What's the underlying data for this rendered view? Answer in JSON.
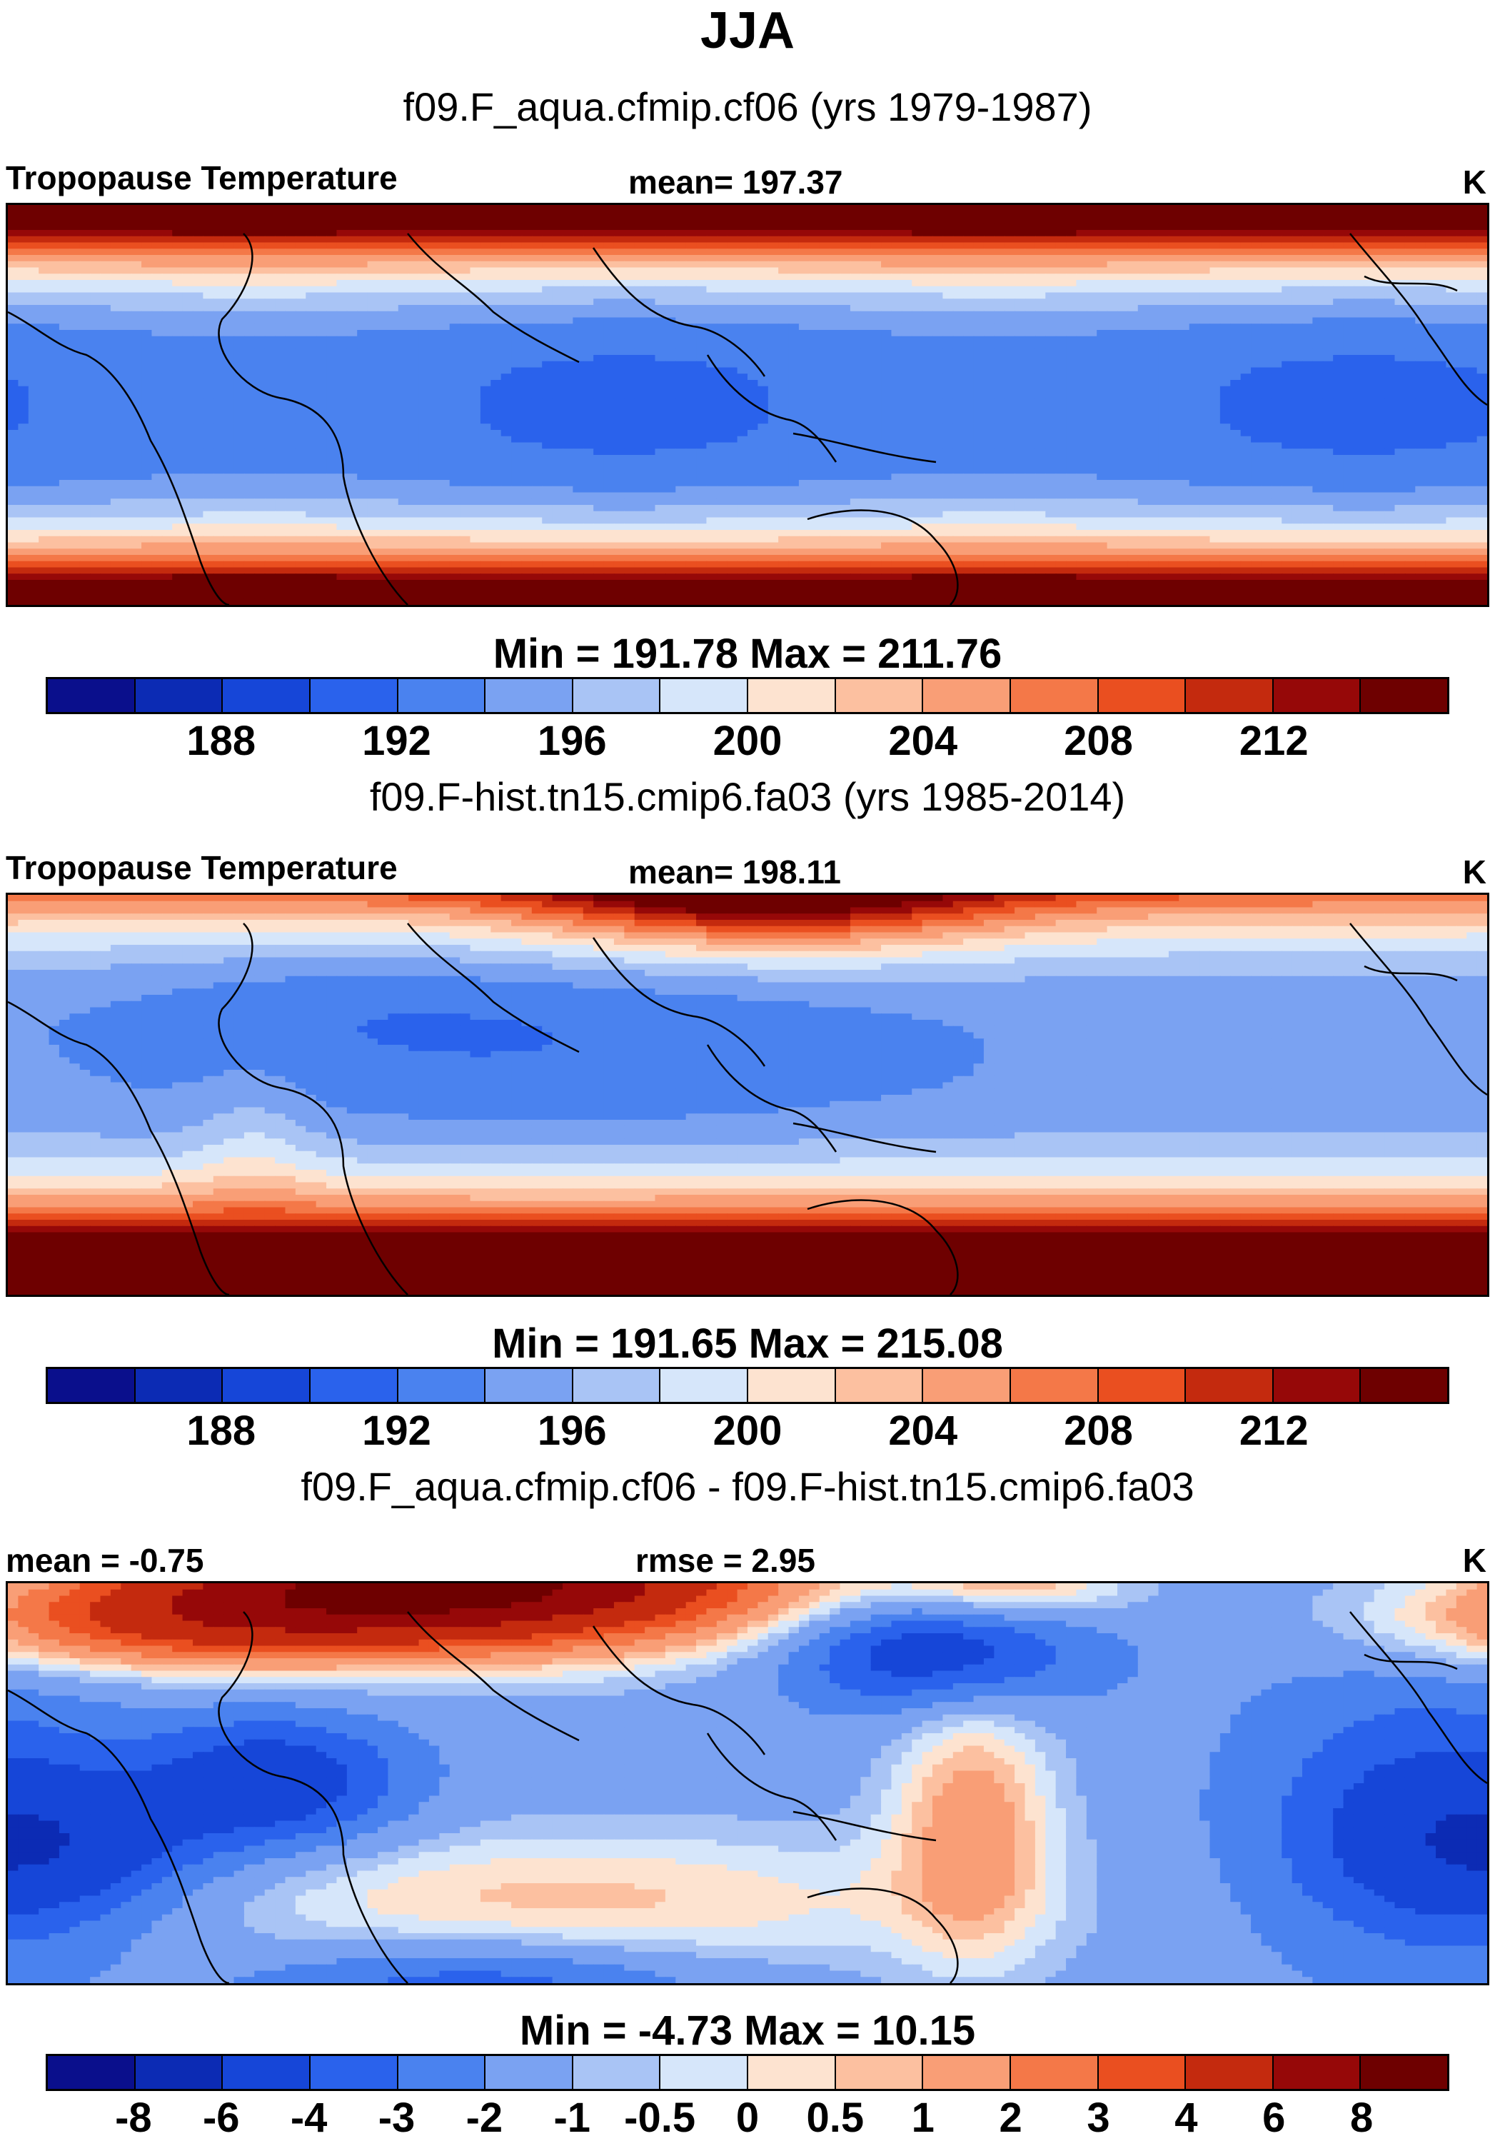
{
  "chart_data": [
    {
      "type": "heatmap",
      "season": "JJA",
      "case": "f09.F_aqua.cfmip.cf06 (yrs 1979-1987)",
      "variable": "Tropopause Temperature",
      "mean_label": "mean= 197.37",
      "units": "K",
      "min_max_label": "Min = 191.78 Max = 211.76",
      "min": 191.78,
      "max": 211.76,
      "mean": 197.37,
      "colorbar_ticks": [
        "188",
        "192",
        "196",
        "200",
        "204",
        "208",
        "212"
      ],
      "levels": [
        186,
        188,
        190,
        192,
        194,
        196,
        198,
        200,
        202,
        204,
        206,
        208,
        210,
        212,
        214
      ],
      "pattern": "zonally symmetric: coldest (~192 K) near equator, warming to >210 K at high latitudes"
    },
    {
      "type": "heatmap",
      "case": "f09.F-hist.tn15.cmip6.fa03 (yrs 1985-2014)",
      "variable": "Tropopause Temperature",
      "mean_label": "mean= 198.11",
      "units": "K",
      "min_max_label": "Min = 191.65 Max = 215.08",
      "min": 191.65,
      "max": 215.08,
      "mean": 198.11,
      "colorbar_ticks": [
        "188",
        "192",
        "196",
        "200",
        "204",
        "208",
        "212"
      ],
      "levels": [
        186,
        188,
        190,
        192,
        194,
        196,
        198,
        200,
        202,
        204,
        206,
        208,
        210,
        212,
        214
      ],
      "pattern": "cold tropical belt shifted north, coldest over Asian monsoon / west Pacific, warm North Pacific"
    },
    {
      "type": "heatmap",
      "case": "f09.F_aqua.cfmip.cf06 - f09.F-hist.tn15.cmip6.fa03",
      "mean_label": "mean =  -0.75",
      "rmse_label": "rmse =   2.95",
      "units": "K",
      "min_max_label": "Min =  -4.73 Max =  10.15",
      "min": -4.73,
      "max": 10.15,
      "mean": -0.75,
      "rmse": 2.95,
      "colorbar_ticks": [
        "-8",
        "-6",
        "-4",
        "-3",
        "-2",
        "-1",
        "-0.5",
        "0",
        "0.5",
        "1",
        "2",
        "3",
        "4",
        "6",
        "8"
      ],
      "levels": [
        -8,
        -6,
        -4,
        -3,
        -2,
        -1,
        -0.5,
        0,
        0.5,
        1,
        2,
        3,
        4,
        6,
        8
      ],
      "pattern": "strong positive differences (up to 10 K) over Asia/North Pacific, negative over Atlantic, Indian Ocean and east Pacific"
    }
  ],
  "page": {
    "title": "JJA"
  },
  "colors": {
    "abs_palette": [
      "#0a0f8c",
      "#0c2bb4",
      "#1646d8",
      "#2a62ec",
      "#4a82ef",
      "#7aa2f2",
      "#a9c4f5",
      "#d6e6fa",
      "#fde3d0",
      "#fcc0a0",
      "#f99e76",
      "#f47848",
      "#ea4f20",
      "#c42a0e",
      "#960808",
      "#6e0000"
    ],
    "diff_palette": [
      "#0a0f8c",
      "#0c2bb4",
      "#1646d8",
      "#2a62ec",
      "#4a82ef",
      "#7aa2f2",
      "#a9c4f5",
      "#d6e6fa",
      "#fde3d0",
      "#fcc0a0",
      "#f99e76",
      "#f47848",
      "#ea4f20",
      "#c42a0e",
      "#960808",
      "#6e0000"
    ]
  }
}
